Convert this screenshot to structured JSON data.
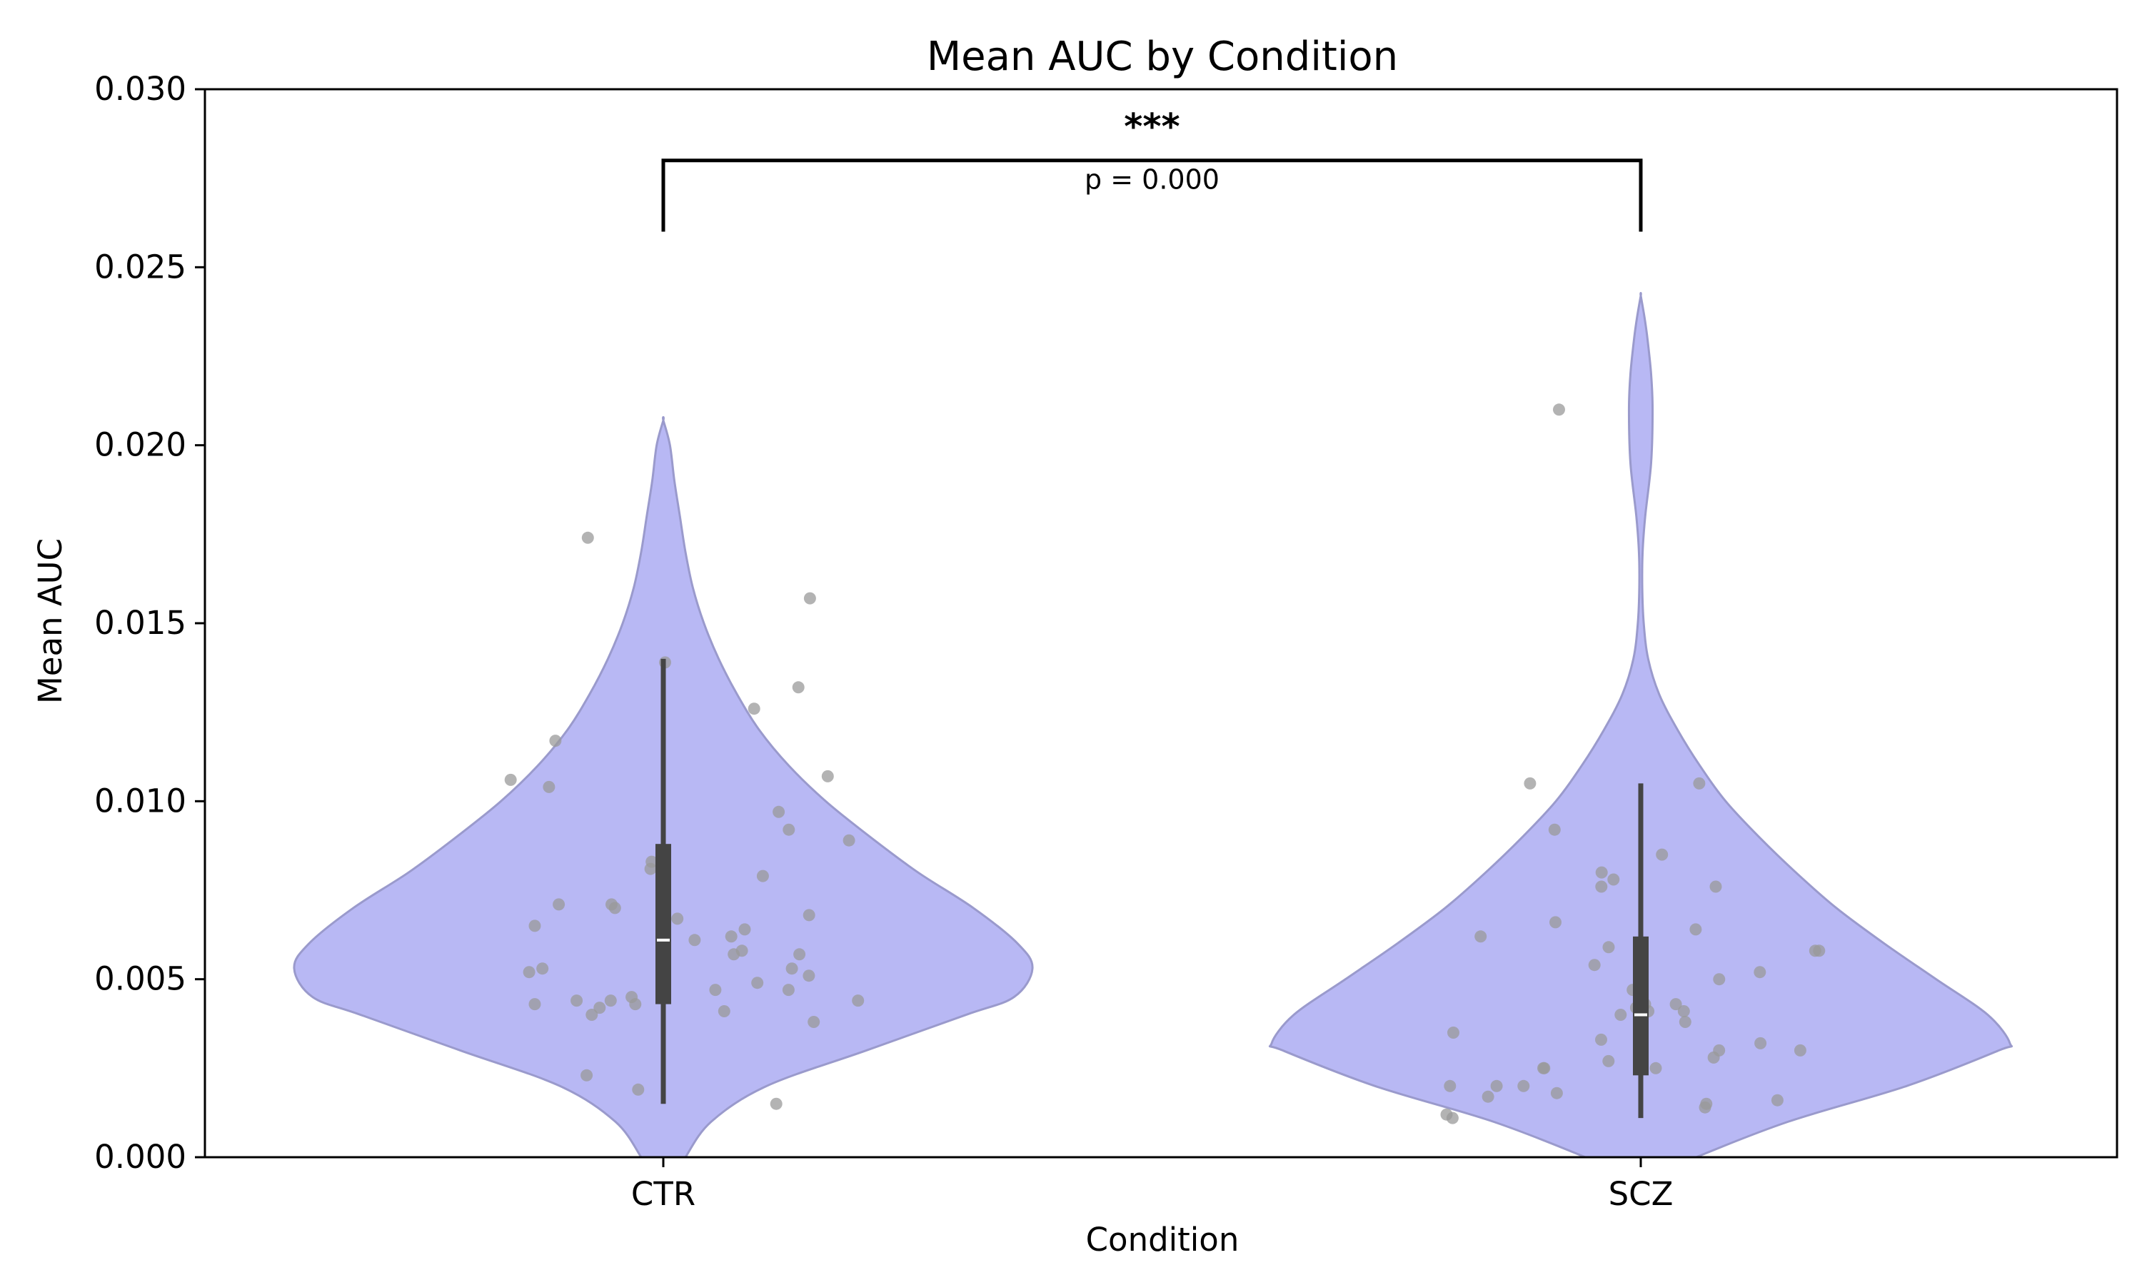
{
  "chart_data": {
    "type": "violin",
    "title": "Mean AUC by Condition",
    "xlabel": "Condition",
    "ylabel": "Mean AUC",
    "ylim": [
      0,
      0.03
    ],
    "yticks": [
      "0.000",
      "0.005",
      "0.010",
      "0.015",
      "0.020",
      "0.025",
      "0.030"
    ],
    "ytick_values": [
      0,
      0.005,
      0.01,
      0.015,
      0.02,
      0.025,
      0.03
    ],
    "categories": [
      "CTR",
      "SCZ"
    ],
    "grid": false,
    "legend": "none",
    "colors": {
      "violin_fill": "#b8b8f4",
      "violin_edge": "#9a9acc",
      "points": "#9a9a9a",
      "box": "#444444",
      "median": "#ffffff",
      "bracket": "#000000"
    },
    "significance": {
      "stars": "***",
      "p_text": "p = 0.000",
      "y": 0.028,
      "drop_to": 0.026
    },
    "groups": [
      {
        "name": "CTR",
        "box": {
          "whisker_low": 0.0015,
          "q1": 0.0043,
          "median": 0.0061,
          "q3": 0.0088,
          "whisker_high": 0.014
        },
        "violin_profile": [
          [
            -0.0004,
            0.04
          ],
          [
            0.0,
            0.06
          ],
          [
            0.001,
            0.13
          ],
          [
            0.002,
            0.28
          ],
          [
            0.003,
            0.55
          ],
          [
            0.004,
            0.82
          ],
          [
            0.0045,
            0.95
          ],
          [
            0.0053,
            1.0
          ],
          [
            0.006,
            0.96
          ],
          [
            0.007,
            0.84
          ],
          [
            0.008,
            0.69
          ],
          [
            0.009,
            0.56
          ],
          [
            0.01,
            0.44
          ],
          [
            0.011,
            0.34
          ],
          [
            0.012,
            0.26
          ],
          [
            0.013,
            0.2
          ],
          [
            0.014,
            0.15
          ],
          [
            0.015,
            0.11
          ],
          [
            0.016,
            0.08
          ],
          [
            0.017,
            0.06
          ],
          [
            0.018,
            0.045
          ],
          [
            0.019,
            0.03
          ],
          [
            0.02,
            0.018
          ],
          [
            0.0207,
            0.0
          ]
        ],
        "points": [
          0.0041,
          0.0023,
          0.0047,
          0.0044,
          0.0057,
          0.0062,
          0.0065,
          0.0038,
          0.0064,
          0.0053,
          0.0049,
          0.0042,
          0.0097,
          0.0053,
          0.0061,
          0.0071,
          0.0104,
          0.0015,
          0.0068,
          0.0132,
          0.0106,
          0.0083,
          0.0126,
          0.0044,
          0.0044,
          0.0071,
          0.0107,
          0.0051,
          0.0045,
          0.0043,
          0.0092,
          0.0043,
          0.0052,
          0.004,
          0.007,
          0.0139,
          0.0089,
          0.0081,
          0.0079,
          0.0117,
          0.0019,
          0.0157,
          0.0047,
          0.0174,
          0.0067,
          0.0057,
          0.0058
        ]
      },
      {
        "name": "SCZ",
        "box": {
          "whisker_low": 0.0011,
          "q1": 0.0023,
          "median": 0.004,
          "q3": 0.0062,
          "whisker_high": 0.0105
        },
        "violin_profile": [
          [
            -0.0004,
            0.07
          ],
          [
            0.0,
            0.15
          ],
          [
            0.001,
            0.4
          ],
          [
            0.002,
            0.72
          ],
          [
            0.003,
            0.97
          ],
          [
            0.0032,
            1.0
          ],
          [
            0.004,
            0.94
          ],
          [
            0.005,
            0.8
          ],
          [
            0.006,
            0.66
          ],
          [
            0.007,
            0.53
          ],
          [
            0.008,
            0.42
          ],
          [
            0.009,
            0.32
          ],
          [
            0.01,
            0.23
          ],
          [
            0.011,
            0.16
          ],
          [
            0.012,
            0.1
          ],
          [
            0.013,
            0.05
          ],
          [
            0.014,
            0.02
          ],
          [
            0.015,
            0.008
          ],
          [
            0.016,
            0.004
          ],
          [
            0.017,
            0.005
          ],
          [
            0.018,
            0.012
          ],
          [
            0.0195,
            0.028
          ],
          [
            0.021,
            0.032
          ],
          [
            0.022,
            0.028
          ],
          [
            0.023,
            0.018
          ],
          [
            0.0236,
            0.01
          ],
          [
            0.0242,
            0.0
          ]
        ],
        "points": [
          0.0017,
          0.0043,
          0.0062,
          0.0076,
          0.0076,
          0.005,
          0.0025,
          0.0054,
          0.008,
          0.0059,
          0.0058,
          0.0078,
          0.0035,
          0.0025,
          0.002,
          0.0015,
          0.0012,
          0.0018,
          0.0092,
          0.0027,
          0.0105,
          0.0052,
          0.0047,
          0.0025,
          0.0016,
          0.0038,
          0.003,
          0.0011,
          0.0085,
          0.004,
          0.0043,
          0.0014,
          0.021,
          0.0042,
          0.0058,
          0.002,
          0.0041,
          0.003,
          0.0041,
          0.002,
          0.0064,
          0.0105,
          0.0033,
          0.0032,
          0.0028,
          0.0066
        ]
      }
    ]
  }
}
